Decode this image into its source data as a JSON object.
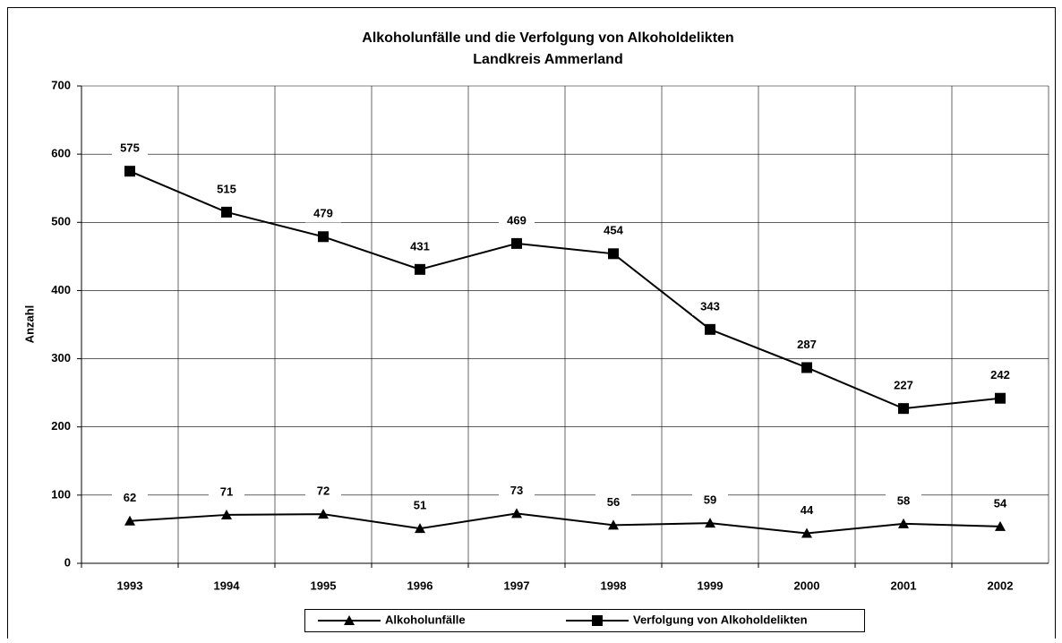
{
  "chart_data": {
    "type": "line",
    "title": "Alkoholunfälle und die Verfolgung von Alkoholdelikten",
    "subtitle": "Landkreis Ammerland",
    "y_label": "Anzahl",
    "categories": [
      "1993",
      "1994",
      "1995",
      "1996",
      "1997",
      "1998",
      "1999",
      "2000",
      "2001",
      "2002"
    ],
    "series": [
      {
        "name": "Alkoholunfälle",
        "color": "#000000",
        "marker": "triangle",
        "values": [
          62,
          71,
          72,
          51,
          73,
          56,
          59,
          44,
          58,
          54
        ]
      },
      {
        "name": "Verfolgung von Alkoholdelikten",
        "color": "#000000",
        "marker": "square",
        "values": [
          575,
          515,
          479,
          431,
          469,
          454,
          343,
          287,
          227,
          242
        ]
      }
    ],
    "ylim": [
      0,
      700
    ],
    "yticks": [
      0,
      100,
      200,
      300,
      400,
      500,
      600,
      700
    ],
    "grid": true,
    "legend": "bottom"
  }
}
